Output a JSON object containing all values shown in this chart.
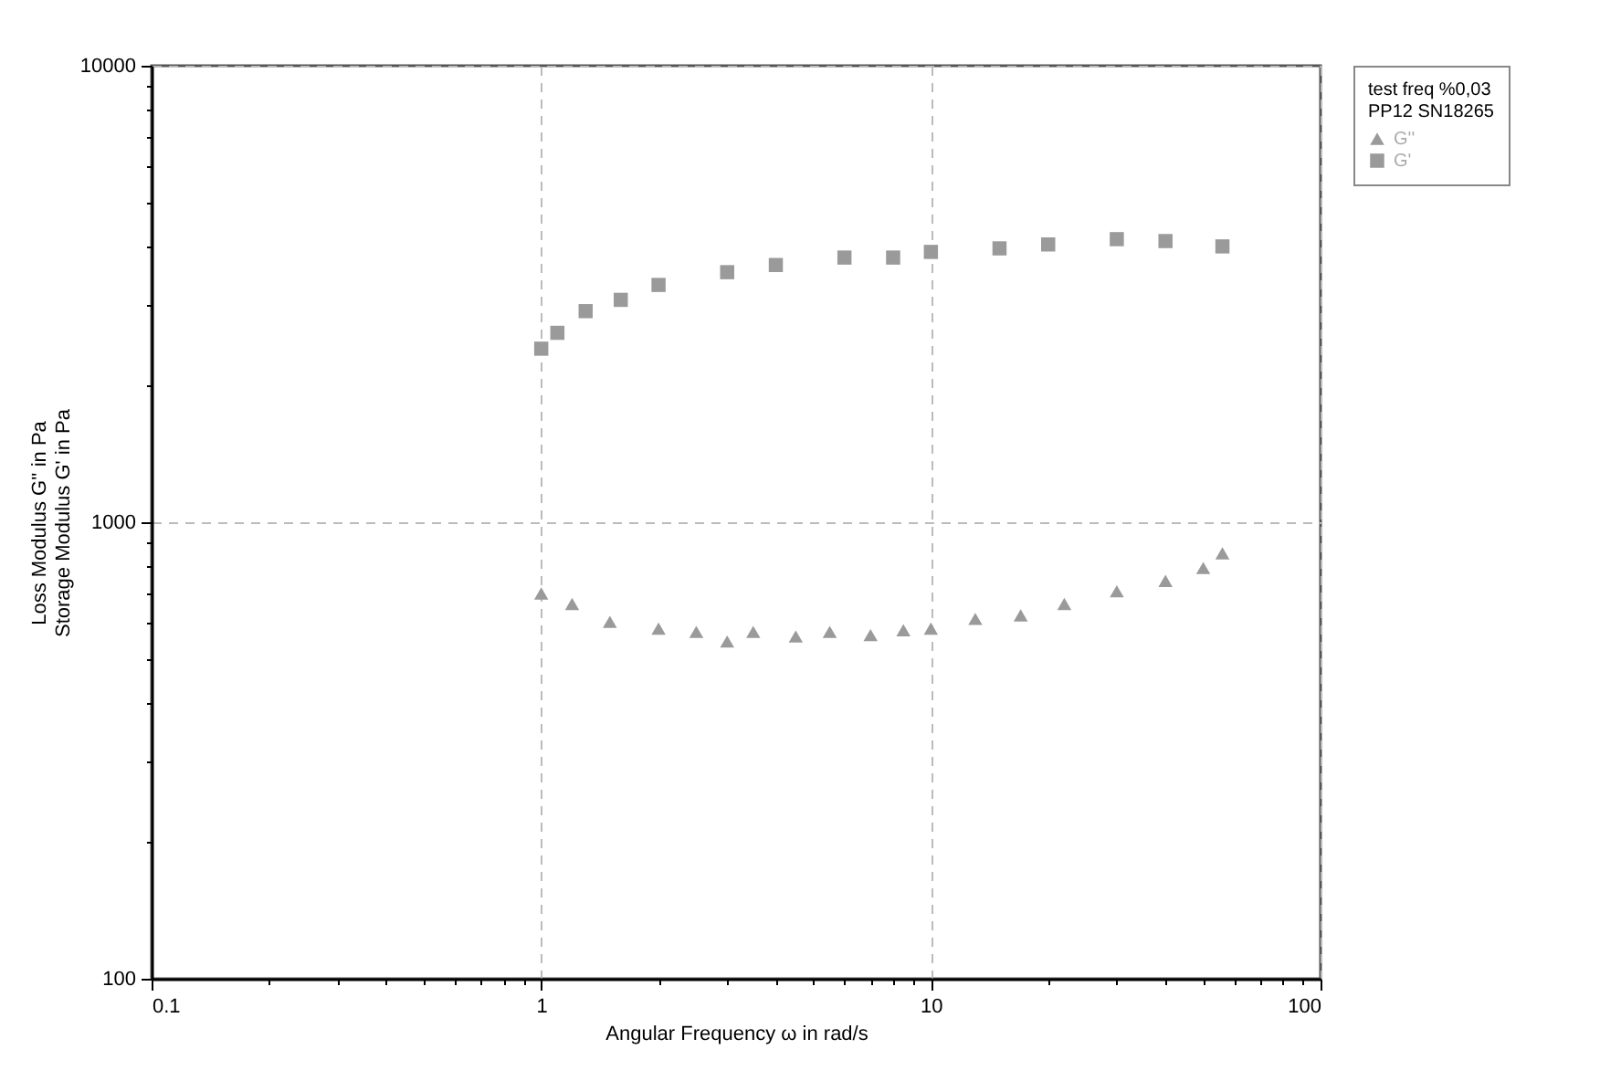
{
  "chart_data": {
    "type": "scatter",
    "xlabel": "Angular Frequency ω in rad/s",
    "ylabel": "Loss Modulus G'' in Pa\nStorage Modulus G' in Pa",
    "legend_title": "test freq %0,03\nPP12 SN18265",
    "log": "xy",
    "grid": true,
    "legend": "right",
    "xlim": [
      0.1,
      100
    ],
    "ylim": [
      100,
      10000
    ],
    "xticks": [
      0.1,
      {
        "value": 0.2,
        "label": null
      },
      {
        "value": 0.3,
        "label": null
      },
      {
        "value": 0.4,
        "label": null
      },
      {
        "value": 0.5,
        "label": null
      },
      {
        "value": 0.6,
        "label": null
      },
      {
        "value": 0.7,
        "label": null
      },
      {
        "value": 0.8,
        "label": null
      },
      {
        "value": 0.9,
        "label": null
      },
      1,
      {
        "value": 2,
        "label": null
      },
      {
        "value": 3,
        "label": null
      },
      {
        "value": 4,
        "label": null
      },
      {
        "value": 5,
        "label": null
      },
      {
        "value": 6,
        "label": null
      },
      {
        "value": 7,
        "label": null
      },
      {
        "value": 8,
        "label": null
      },
      {
        "value": 9,
        "label": null
      },
      10,
      {
        "value": 20,
        "label": null
      },
      {
        "value": 30,
        "label": null
      },
      {
        "value": 40,
        "label": null
      },
      {
        "value": 50,
        "label": null
      },
      {
        "value": 60,
        "label": null
      },
      {
        "value": 70,
        "label": null
      },
      {
        "value": 80,
        "label": null
      },
      {
        "value": 90,
        "label": null
      },
      100
    ],
    "yticks": [
      100,
      {
        "value": 200,
        "label": null
      },
      {
        "value": 300,
        "label": null
      },
      {
        "value": 400,
        "label": null
      },
      {
        "value": 500,
        "label": null
      },
      {
        "value": 600,
        "label": null
      },
      {
        "value": 700,
        "label": null
      },
      {
        "value": 800,
        "label": null
      },
      {
        "value": 900,
        "label": null
      },
      1000,
      {
        "value": 2000,
        "label": null
      },
      {
        "value": 3000,
        "label": null
      },
      {
        "value": 4000,
        "label": null
      },
      {
        "value": 5000,
        "label": null
      },
      {
        "value": 6000,
        "label": null
      },
      {
        "value": 7000,
        "label": null
      },
      {
        "value": 8000,
        "label": null
      },
      {
        "value": 9000,
        "label": null
      },
      10000
    ],
    "series": [
      {
        "name": "G''",
        "color": "#9a9a9a",
        "marker": "triangle",
        "x": [
          1,
          1.2,
          1.5,
          2,
          2.5,
          3,
          3.5,
          4.5,
          5.5,
          7,
          8.5,
          10,
          13,
          17,
          22,
          30,
          40,
          50,
          56
        ],
        "values": [
          698,
          662,
          605,
          585,
          575,
          548,
          575,
          562,
          575,
          566,
          580,
          585,
          614,
          625,
          662,
          706,
          744,
          794,
          855
        ]
      },
      {
        "name": "G'",
        "color": "#9a9a9a",
        "marker": "square",
        "x": [
          1,
          1.1,
          1.3,
          1.6,
          2,
          3,
          4,
          6,
          8,
          10,
          15,
          20,
          30,
          40,
          56
        ],
        "values": [
          2400,
          2600,
          2900,
          3070,
          3310,
          3530,
          3660,
          3800,
          3800,
          3910,
          3980,
          4060,
          4170,
          4130,
          4020
        ]
      }
    ]
  }
}
